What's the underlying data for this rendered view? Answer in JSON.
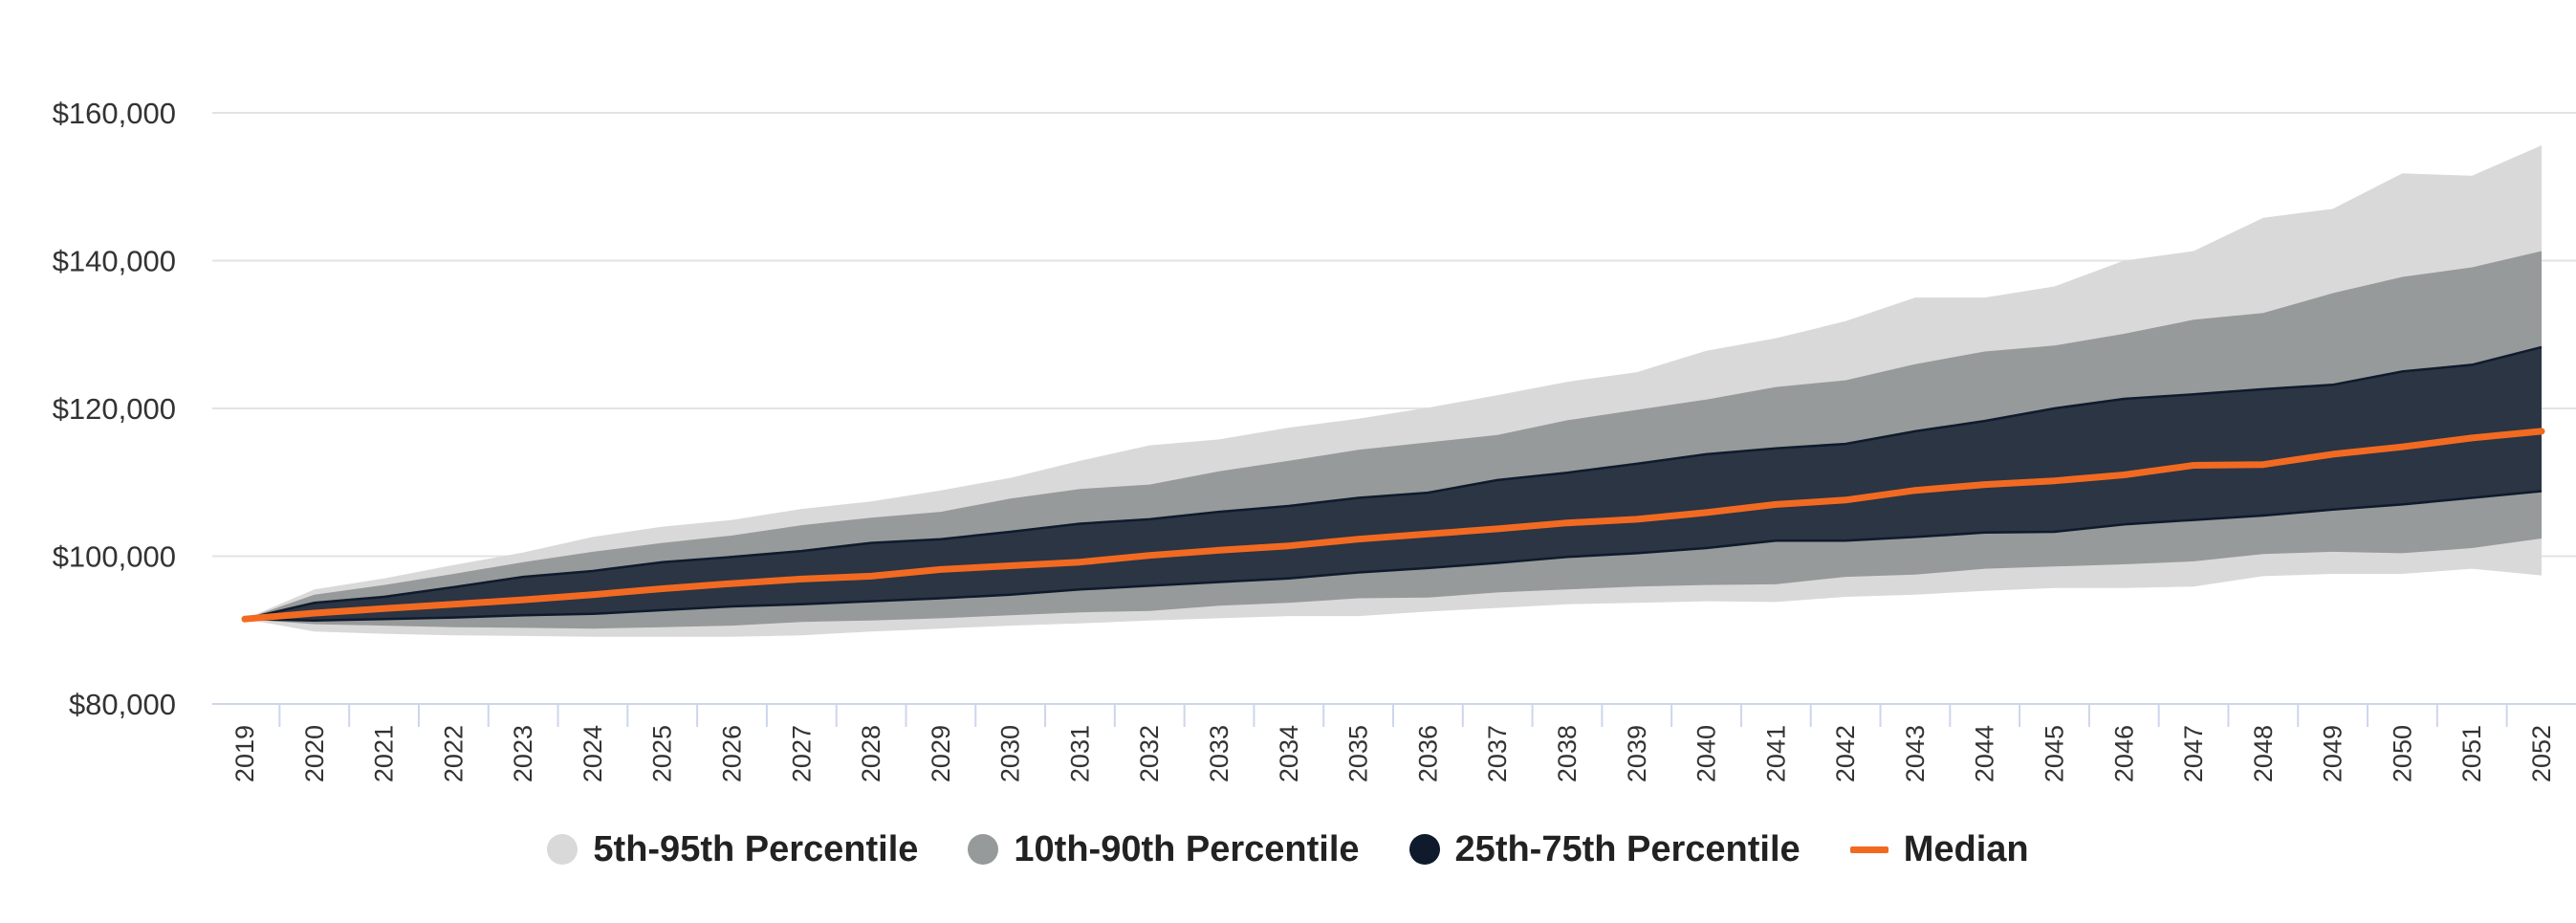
{
  "chart_data": {
    "type": "area",
    "title": "",
    "xlabel": "",
    "ylabel": "",
    "ylim": [
      80000,
      160000
    ],
    "yticks": [
      80000,
      100000,
      120000,
      140000,
      160000
    ],
    "ytick_labels": [
      "$80,000",
      "$100,000",
      "$120,000",
      "$140,000",
      "$160,000"
    ],
    "grid": true,
    "legend_position": "bottom",
    "x": [
      "2019",
      "2020",
      "2021",
      "2022",
      "2023",
      "2024",
      "2025",
      "2026",
      "2027",
      "2028",
      "2029",
      "2030",
      "2031",
      "2032",
      "2033",
      "2034",
      "2035",
      "2036",
      "2037",
      "2038",
      "2039",
      "2040",
      "2041",
      "2042",
      "2043",
      "2044",
      "2045",
      "2046",
      "2047",
      "2048",
      "2049",
      "2050",
      "2051",
      "2052"
    ],
    "bands": [
      {
        "name": "5th-95th Percentile",
        "color": "#d9d9d9",
        "lower": [
          91500,
          89800,
          89500,
          89300,
          89200,
          89100,
          89100,
          89100,
          89300,
          89800,
          90200,
          90600,
          90900,
          91300,
          91600,
          91900,
          91900,
          92500,
          93000,
          93500,
          93700,
          93900,
          93800,
          94500,
          94800,
          95300,
          95700,
          95700,
          95900,
          97300,
          97600,
          97600,
          98300,
          97400
        ],
        "upper": [
          91500,
          95500,
          97000,
          98800,
          100500,
          102600,
          104000,
          104900,
          106400,
          107400,
          108900,
          110600,
          112900,
          115000,
          115800,
          117400,
          118600,
          120100,
          121800,
          123600,
          124900,
          127800,
          129500,
          131800,
          135000,
          135000,
          136500,
          140000,
          141300,
          145800,
          147000,
          151800,
          151500,
          155600
        ]
      },
      {
        "name": "10th-90th Percentile",
        "color": "#979a9a",
        "lower": [
          91500,
          90800,
          90600,
          90400,
          90300,
          90200,
          90400,
          90600,
          91100,
          91300,
          91600,
          92000,
          92400,
          92600,
          93300,
          93700,
          94300,
          94400,
          95100,
          95500,
          95900,
          96100,
          96200,
          97200,
          97500,
          98300,
          98600,
          98900,
          99300,
          100300,
          100600,
          100400,
          101100,
          102400
        ],
        "upper": [
          91500,
          94800,
          96100,
          97600,
          99200,
          100600,
          101800,
          102800,
          104200,
          105200,
          106000,
          107800,
          109100,
          109700,
          111500,
          112900,
          114400,
          115400,
          116400,
          118400,
          119800,
          121200,
          122900,
          123800,
          126000,
          127700,
          128500,
          130100,
          132000,
          132900,
          135600,
          137800,
          139100,
          141300
        ]
      },
      {
        "name": "25th-75th Percentile",
        "color": "#2b3544",
        "lower": [
          91500,
          91300,
          91500,
          91700,
          92000,
          92200,
          92700,
          93200,
          93500,
          93900,
          94300,
          94800,
          95500,
          96000,
          96500,
          97000,
          97800,
          98400,
          99100,
          99900,
          100400,
          101100,
          102100,
          102100,
          102600,
          103200,
          103300,
          104300,
          104900,
          105500,
          106300,
          107000,
          107900,
          108800
        ],
        "upper": [
          91500,
          93700,
          94500,
          95800,
          97200,
          98000,
          99200,
          99900,
          100700,
          101800,
          102300,
          103300,
          104400,
          105000,
          106000,
          106800,
          107900,
          108600,
          110300,
          111300,
          112500,
          113800,
          114600,
          115200,
          116900,
          118300,
          120000,
          121300,
          121900,
          122600,
          123200,
          125000,
          125900,
          128300
        ]
      }
    ],
    "series": [
      {
        "name": "Median",
        "color": "#f26a21",
        "values": [
          91500,
          92300,
          92900,
          93500,
          94100,
          94800,
          95600,
          96300,
          96900,
          97300,
          98200,
          98700,
          99200,
          100100,
          100800,
          101400,
          102300,
          103000,
          103700,
          104500,
          105000,
          105900,
          107000,
          107600,
          108900,
          109700,
          110200,
          111000,
          112300,
          112400,
          113800,
          114800,
          116000,
          116900
        ]
      }
    ],
    "legend": [
      {
        "label": "5th-95th Percentile",
        "swatch": "dot",
        "color": "#d9d9d9"
      },
      {
        "label": "10th-90th Percentile",
        "swatch": "dot",
        "color": "#979a9a"
      },
      {
        "label": "25th-75th Percentile",
        "swatch": "dot",
        "color": "#0f1b2d"
      },
      {
        "label": "Median",
        "swatch": "line",
        "color": "#f26a21"
      }
    ]
  }
}
